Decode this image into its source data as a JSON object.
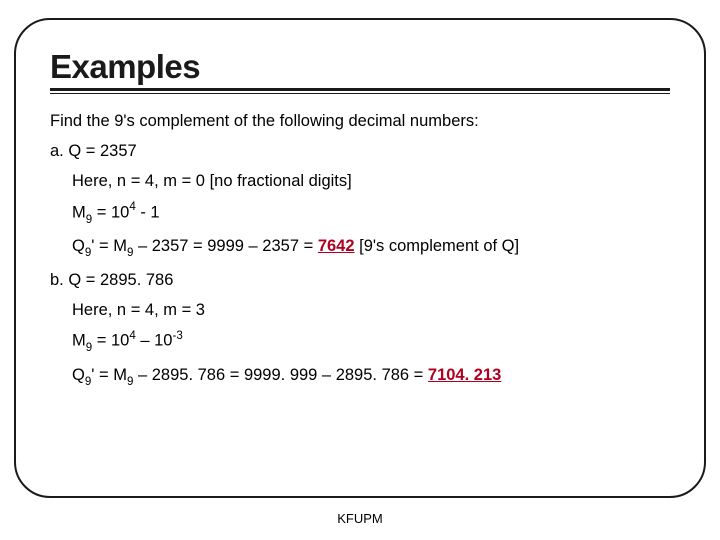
{
  "slide": {
    "title": "Examples",
    "intro": "Find the 9's complement of the following decimal numbers:",
    "footer": "KFUPM",
    "colors": {
      "border": "#1a1a1a",
      "text": "#000000",
      "answer": "#b00020",
      "background": "#ffffff"
    },
    "fontsize": {
      "title": 33,
      "body": 16.5,
      "footer": 13
    },
    "example_a": {
      "label": "a. Q = 2357",
      "line1": "Here, n = 4, m = 0 [no fractional digits]",
      "m9_prefix": "M",
      "m9_sub": "9",
      "m9_eq": " = 10",
      "m9_sup": "4",
      "m9_tail": " - 1",
      "q_prefix": "Q",
      "q_sub": "9",
      "q_mid1": "' = M",
      "q_sub2": "9",
      "q_mid2": " – 2357 = 9999 – 2357 = ",
      "q_answer": "7642",
      "q_tail": " [9's complement of Q]"
    },
    "example_b": {
      "label": "b. Q = 2895. 786",
      "line1": "Here, n = 4, m = 3",
      "m9_prefix": "M",
      "m9_sub": "9",
      "m9_eq": " = 10",
      "m9_sup1": "4",
      "m9_mid": " – 10",
      "m9_sup2": "-3",
      "q_prefix": "Q",
      "q_sub": "9",
      "q_mid1": "' = M",
      "q_sub2": "9",
      "q_mid2": " – 2895. 786 = 9999. 999 – 2895. 786 = ",
      "q_answer": "7104. 213"
    }
  }
}
